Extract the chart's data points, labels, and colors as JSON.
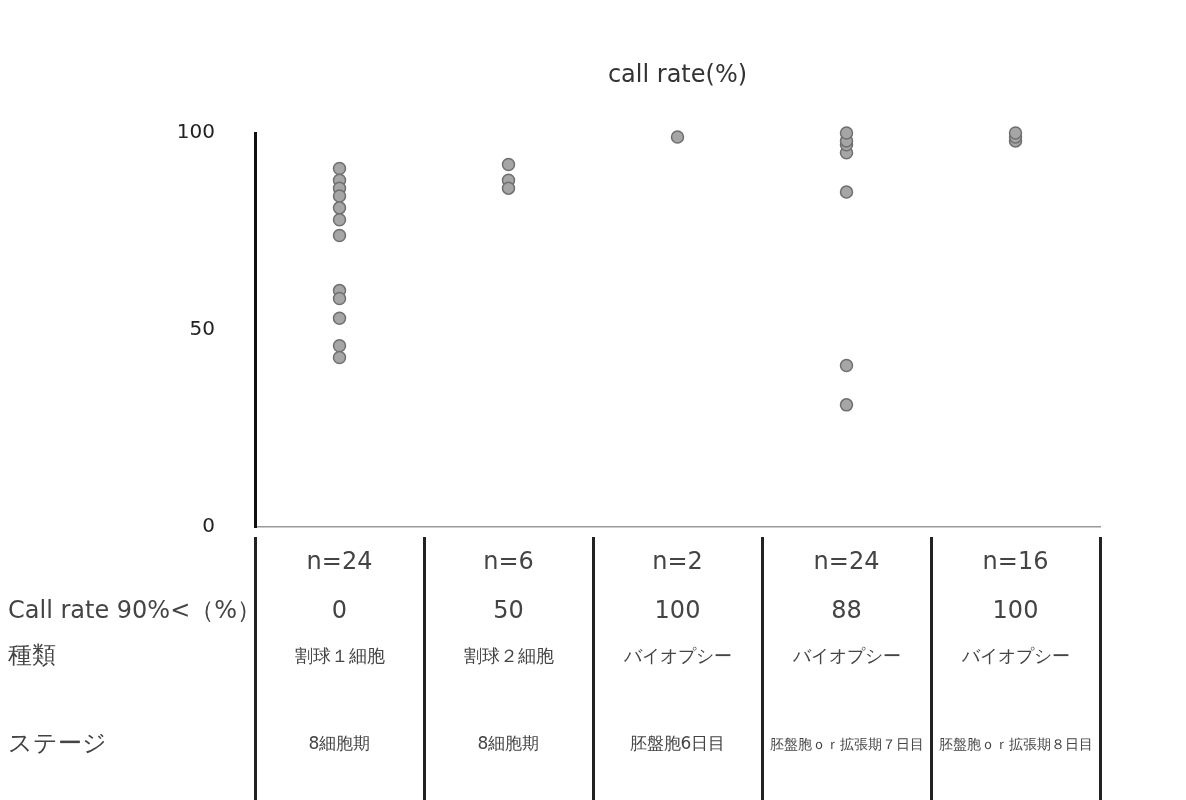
{
  "chart_data": {
    "type": "scatter",
    "title": "call rate(%)",
    "categories": [
      "n=24\n0",
      "n=6\n50",
      "n=2\n100",
      "n=24\n88",
      "n=16\n100"
    ],
    "series": [
      {
        "color": "#a6a6a6",
        "x": [
          "n=24\n0",
          "n=24\n0",
          "n=24\n0",
          "n=24\n0",
          "n=24\n0",
          "n=24\n0",
          "n=24\n0",
          "n=24\n0",
          "n=24\n0",
          "n=24\n0",
          "n=24\n0",
          "n=24\n0",
          "n=6\n50",
          "n=6\n50",
          "n=6\n50",
          "n=2\n100",
          "n=24\n88",
          "n=24\n88",
          "n=24\n88",
          "n=24\n88",
          "n=24\n88",
          "n=24\n88",
          "n=24\n88",
          "n=16\n100",
          "n=16\n100",
          "n=16\n100"
        ],
        "values": [
          91,
          88,
          86,
          84,
          81,
          78,
          74,
          60,
          58,
          53,
          46,
          43,
          92,
          88,
          86,
          99,
          95,
          97,
          98,
          100,
          85,
          41,
          31,
          98,
          99,
          100
        ]
      }
    ],
    "annotations": [
      "Call rate 90%<（%）",
      "種類",
      "ステージ",
      "割球１細胞",
      "割球２細胞",
      "バイオプシー",
      "バイオプシー",
      "バイオプシー",
      "8細胞期",
      "8細胞期",
      "胚盤胞6日目",
      "胚盤胞ｏｒ拡張期７日目",
      "胚盤胞ｏｒ拡張期８日目"
    ],
    "ylim": [
      0,
      100
    ],
    "yticks": [
      0,
      50,
      100
    ],
    "grid": false,
    "legend": false,
    "marker": "circle"
  }
}
